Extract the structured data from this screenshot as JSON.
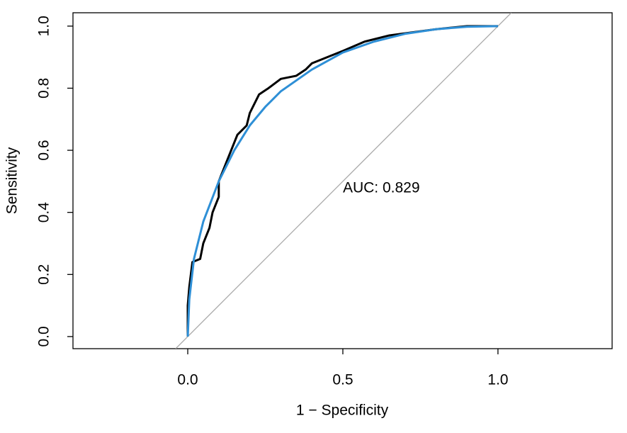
{
  "chart_data": {
    "type": "line",
    "xlabel": "1 − Specificity",
    "ylabel": "Sensitivity",
    "annotation": "AUC: 0.829",
    "xlim": [
      -0.37,
      1.368
    ],
    "ylim": [
      -0.039,
      1.043
    ],
    "xticks": [
      {
        "value": 0,
        "label": "0.0"
      },
      {
        "value": 0.5,
        "label": "0.5"
      },
      {
        "value": 1,
        "label": "1.0"
      }
    ],
    "yticks": [
      {
        "value": 0,
        "label": "0.0"
      },
      {
        "value": 0.2,
        "label": "0.2"
      },
      {
        "value": 0.4,
        "label": "0.4"
      },
      {
        "value": 0.6,
        "label": "0.6"
      },
      {
        "value": 0.8,
        "label": "0.8"
      },
      {
        "value": 1,
        "label": "1.0"
      }
    ],
    "reference_color": "#aaaaaa",
    "series": [
      {
        "color": "#000000",
        "width": 3,
        "x": [
          0,
          0,
          0.005,
          0.01,
          0.015,
          0.04,
          0.05,
          0.07,
          0.08,
          0.1,
          0.1,
          0.12,
          0.14,
          0.16,
          0.19,
          0.2,
          0.22,
          0.23,
          0.26,
          0.3,
          0.35,
          0.38,
          0.4,
          0.45,
          0.5,
          0.57,
          0.65,
          0.8,
          0.9,
          1
        ],
        "values": [
          0,
          0.1,
          0.16,
          0.2,
          0.24,
          0.25,
          0.3,
          0.35,
          0.4,
          0.45,
          0.5,
          0.55,
          0.6,
          0.65,
          0.68,
          0.72,
          0.76,
          0.78,
          0.8,
          0.83,
          0.84,
          0.86,
          0.88,
          0.9,
          0.92,
          0.95,
          0.97,
          0.99,
          1,
          1
        ]
      },
      {
        "color": "#2e8fd6",
        "width": 3,
        "x": [
          0,
          0.005,
          0.02,
          0.05,
          0.1,
          0.15,
          0.2,
          0.25,
          0.3,
          0.4,
          0.5,
          0.6,
          0.7,
          0.8,
          0.9,
          1
        ],
        "values": [
          0,
          0.12,
          0.25,
          0.37,
          0.5,
          0.6,
          0.68,
          0.74,
          0.79,
          0.86,
          0.915,
          0.95,
          0.975,
          0.99,
          0.998,
          1
        ]
      }
    ]
  }
}
